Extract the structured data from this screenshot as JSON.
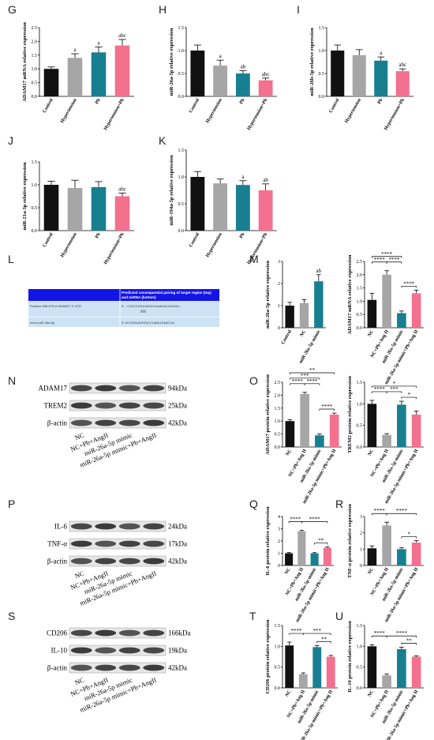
{
  "panel_labels": {
    "G": "G",
    "H": "H",
    "I": "I",
    "J": "J",
    "K": "K",
    "L": "L",
    "M": "M",
    "N": "N",
    "O": "O",
    "P": "P",
    "Q": "Q",
    "R": "R",
    "S": "S",
    "T": "T",
    "U": "U"
  },
  "colors": {
    "black": "#111111",
    "gray": "#a6a6a6",
    "teal": "#187f91",
    "pink": "#f4708f",
    "blue_band": "#1414e6",
    "light_blue": "#cde3f5"
  },
  "target_table": {
    "header": "Predicted consequential pairing of target region (top) and miRNA (bottom)",
    "row1_label": "Position 968-975 of ADAM17 3' UTR",
    "row1_seq": "5'   ...CGUCUGUUACACUAAUACUUGAA...",
    "pairing": "|||||||",
    "row2_label": "mmu-miR-26a-5p",
    "row2_seq": "3'   UCGGAUAGGACCUAAUGAACUU"
  },
  "western_blots": [
    {
      "panel": "N",
      "bands": [
        {
          "name": "ADAM17",
          "kda": "94kDa"
        },
        {
          "name": "TREM2",
          "kda": "25kDa"
        },
        {
          "name": "β-actin",
          "kda": "42kDa"
        }
      ]
    },
    {
      "panel": "P",
      "bands": [
        {
          "name": "IL-6",
          "kda": "24kDa"
        },
        {
          "name": "TNF-α",
          "kda": "17kDa"
        },
        {
          "name": "β-actin",
          "kda": "42kDa"
        }
      ]
    },
    {
      "panel": "S",
      "bands": [
        {
          "name": "CD206",
          "kda": "166kDa"
        },
        {
          "name": "IL-10",
          "kda": "19kDa"
        },
        {
          "name": "β-actin",
          "kda": "42kDa"
        }
      ]
    }
  ],
  "wb_lanes": [
    "NC",
    "NC+Pb+AngII",
    "miR-26a-5p mimic",
    "miR-26a-5p mimic+Pb+AngII"
  ],
  "chart_data": [
    {
      "panel": "G",
      "type": "bar",
      "ylabel": "ADAM17 mRNA relative expression",
      "categories": [
        "Control",
        "Hypertension",
        "Pb",
        "Hypertension+Pb"
      ],
      "values": [
        1.0,
        1.4,
        1.6,
        1.85
      ],
      "errors": [
        0.07,
        0.15,
        0.2,
        0.22
      ],
      "ylim": [
        0,
        2.5
      ],
      "yticks": [
        "0.0",
        "0.5",
        "1.0",
        "1.5",
        "2.0",
        "2.5"
      ],
      "annotations": [
        "",
        "a",
        "a",
        "abc"
      ],
      "colors": [
        "black",
        "gray",
        "teal",
        "pink"
      ],
      "brackets": []
    },
    {
      "panel": "H",
      "type": "bar",
      "ylabel": "miR-26a-5p relative expression",
      "categories": [
        "Control",
        "Hypertension",
        "Pb",
        "Hypertension+Pb"
      ],
      "values": [
        1.0,
        0.67,
        0.5,
        0.35
      ],
      "errors": [
        0.12,
        0.12,
        0.06,
        0.05
      ],
      "ylim": [
        0,
        1.5
      ],
      "yticks": [
        "0.0",
        "0.5",
        "1.0",
        "1.5"
      ],
      "annotations": [
        "",
        "a",
        "ab",
        "abc"
      ],
      "colors": [
        "black",
        "gray",
        "teal",
        "pink"
      ],
      "brackets": []
    },
    {
      "panel": "I",
      "type": "bar",
      "ylabel": "miR-26b-5p relative expression",
      "categories": [
        "Control",
        "Hypertension",
        "Pb",
        "Hypertension+Pb"
      ],
      "values": [
        1.0,
        0.9,
        0.78,
        0.55
      ],
      "errors": [
        0.12,
        0.12,
        0.08,
        0.05
      ],
      "ylim": [
        0,
        1.5
      ],
      "yticks": [
        "0.0",
        "0.5",
        "1.0",
        "1.5"
      ],
      "annotations": [
        "",
        "",
        "a",
        "abc"
      ],
      "colors": [
        "black",
        "gray",
        "teal",
        "pink"
      ],
      "brackets": []
    },
    {
      "panel": "J",
      "type": "bar",
      "ylabel": "miR-21a-3p relative expression",
      "categories": [
        "Control",
        "Hypertension",
        "Pb",
        "Hypertension+Pb"
      ],
      "values": [
        1.0,
        0.93,
        0.95,
        0.75
      ],
      "errors": [
        0.08,
        0.17,
        0.12,
        0.07
      ],
      "ylim": [
        0,
        1.5
      ],
      "yticks": [
        "0.0",
        "0.5",
        "1.0",
        "1.5"
      ],
      "annotations": [
        "",
        "",
        "",
        "abc"
      ],
      "colors": [
        "black",
        "gray",
        "teal",
        "pink"
      ],
      "brackets": []
    },
    {
      "panel": "K",
      "type": "bar",
      "ylabel": "miR-194a-5p relative expression",
      "categories": [
        "Control",
        "Hypertension",
        "Pb",
        "Hypertension+Pb"
      ],
      "values": [
        1.0,
        0.88,
        0.85,
        0.75
      ],
      "errors": [
        0.1,
        0.08,
        0.08,
        0.12
      ],
      "ylim": [
        0,
        1.5
      ],
      "yticks": [
        "0.0",
        "0.5",
        "1.0",
        "1.5"
      ],
      "annotations": [
        "",
        "",
        "a",
        "ab"
      ],
      "colors": [
        "black",
        "gray",
        "teal",
        "pink"
      ],
      "brackets": []
    },
    {
      "panel": "M1",
      "type": "bar",
      "ylabel": "miR-26a-5p relative expression",
      "categories": [
        "Control",
        "NC",
        "miR-26a-5p mimic"
      ],
      "values": [
        1.0,
        1.12,
        2.1
      ],
      "errors": [
        0.15,
        0.15,
        0.3
      ],
      "ylim": [
        0,
        3
      ],
      "yticks": [
        "0",
        "1",
        "2",
        "3"
      ],
      "annotations": [
        "",
        "",
        "ab"
      ],
      "colors": [
        "black",
        "gray",
        "teal"
      ],
      "brackets": []
    },
    {
      "panel": "M2",
      "type": "bar",
      "ylabel": "ADAM17 mRNA relative expression",
      "categories": [
        "NC",
        "NC+Pb+Ang II",
        "miR-26a-5p mimic",
        "miR-26a-5p mimic+Pb+Ang II"
      ],
      "values": [
        1.05,
        2.0,
        0.55,
        1.3
      ],
      "errors": [
        0.25,
        0.15,
        0.08,
        0.12
      ],
      "ylim": [
        0,
        2.5
      ],
      "yticks": [
        "0.0",
        "0.5",
        "1.0",
        "1.5",
        "2.0",
        "2.5"
      ],
      "annotations": [],
      "colors": [
        "black",
        "gray",
        "teal",
        "pink"
      ],
      "brackets": [
        {
          "from": 0,
          "to": 2,
          "level": 2,
          "label": "****"
        },
        {
          "from": 0,
          "to": 1,
          "level": 1,
          "label": "****"
        },
        {
          "from": 1,
          "to": 2,
          "level": 1,
          "label": "****"
        },
        {
          "from": 2,
          "to": 3,
          "level": 0,
          "label": "****"
        }
      ]
    },
    {
      "panel": "O1",
      "type": "bar",
      "ylabel": "ADAM17 protein relative expression",
      "categories": [
        "NC",
        "NC+Pb+Ang II",
        "miR-26a-5p mimic",
        "miR-26a-5p mimic+Pb+Ang II"
      ],
      "values": [
        1.0,
        2.05,
        0.45,
        1.25
      ],
      "errors": [
        0.06,
        0.06,
        0.05,
        0.06
      ],
      "ylim": [
        0,
        2.5
      ],
      "yticks": [
        "0.0",
        "0.5",
        "1.0",
        "1.5",
        "2.0",
        "2.5"
      ],
      "annotations": [],
      "colors": [
        "black",
        "gray",
        "teal",
        "pink"
      ],
      "brackets": [
        {
          "from": 0,
          "to": 3,
          "level": 3,
          "label": "**"
        },
        {
          "from": 0,
          "to": 2,
          "level": 2,
          "label": "***"
        },
        {
          "from": 0,
          "to": 1,
          "level": 1,
          "label": "****"
        },
        {
          "from": 1,
          "to": 2,
          "level": 1,
          "label": "****"
        },
        {
          "from": 2,
          "to": 3,
          "level": 0,
          "label": "****"
        }
      ]
    },
    {
      "panel": "O2",
      "type": "bar",
      "ylabel": "TREM2 protein relative expression",
      "categories": [
        "NC",
        "NC+Pb+Ang II",
        "miR-26a-5p mimic",
        "miR-26a-5p mimic+Pb+Ang II"
      ],
      "values": [
        1.0,
        0.28,
        0.98,
        0.75
      ],
      "errors": [
        0.08,
        0.03,
        0.08,
        0.08
      ],
      "ylim": [
        0,
        1.5
      ],
      "yticks": [
        "0.0",
        "0.5",
        "1.0",
        "1.5"
      ],
      "annotations": [],
      "colors": [
        "black",
        "gray",
        "teal",
        "pink"
      ],
      "brackets": [
        {
          "from": 0,
          "to": 3,
          "level": 2,
          "label": "*"
        },
        {
          "from": 0,
          "to": 1,
          "level": 1,
          "label": "****"
        },
        {
          "from": 1,
          "to": 2,
          "level": 1,
          "label": "***"
        },
        {
          "from": 2,
          "to": 3,
          "level": 0,
          "label": "*"
        }
      ]
    },
    {
      "panel": "Q",
      "type": "bar",
      "ylabel": "IL-6 protein relative expression",
      "categories": [
        "NC",
        "NC+Pb+Ang II",
        "miR-26a-5p mimic",
        "miR-26a-5p mimic+Pb+Ang II"
      ],
      "values": [
        1.0,
        2.8,
        1.0,
        1.45
      ],
      "errors": [
        0.06,
        0.08,
        0.05,
        0.07
      ],
      "ylim": [
        0,
        4
      ],
      "yticks": [
        "0",
        "1",
        "2",
        "3",
        "4"
      ],
      "annotations": [],
      "colors": [
        "black",
        "gray",
        "teal",
        "pink"
      ],
      "brackets": [
        {
          "from": 0,
          "to": 1,
          "level": 1,
          "label": "****"
        },
        {
          "from": 1,
          "to": 3,
          "level": 1,
          "label": "****"
        },
        {
          "from": 2,
          "to": 3,
          "level": 0,
          "label": "**"
        }
      ]
    },
    {
      "panel": "R",
      "type": "bar",
      "ylabel": "TNF-α protein relative expression",
      "categories": [
        "NC",
        "NC+Pb+Ang II",
        "miR-26a-5p mimic",
        "miR-26a-5p mimic+Pb+Ang II"
      ],
      "values": [
        1.05,
        2.45,
        1.0,
        1.4
      ],
      "errors": [
        0.15,
        0.2,
        0.08,
        0.12
      ],
      "ylim": [
        0,
        3
      ],
      "yticks": [
        "0",
        "1",
        "2",
        "3"
      ],
      "annotations": [],
      "colors": [
        "black",
        "gray",
        "teal",
        "pink"
      ],
      "brackets": [
        {
          "from": 0,
          "to": 1,
          "level": 1,
          "label": "****"
        },
        {
          "from": 1,
          "to": 3,
          "level": 1,
          "label": "****"
        },
        {
          "from": 2,
          "to": 3,
          "level": 0,
          "label": "*"
        }
      ]
    },
    {
      "panel": "T",
      "type": "bar",
      "ylabel": "CD206 protein relative expression",
      "categories": [
        "NC",
        "NC+Pb+Ang II",
        "miR-26a-5p mimic",
        "miR-26a-5p mimic+Pb+Ang II"
      ],
      "values": [
        1.02,
        0.33,
        0.98,
        0.75
      ],
      "errors": [
        0.08,
        0.03,
        0.04,
        0.03
      ],
      "ylim": [
        0,
        1.5
      ],
      "yticks": [
        "0.0",
        "0.5",
        "1.0",
        "1.5"
      ],
      "annotations": [],
      "colors": [
        "black",
        "gray",
        "teal",
        "pink"
      ],
      "brackets": [
        {
          "from": 0,
          "to": 1,
          "level": 1,
          "label": "****"
        },
        {
          "from": 1,
          "to": 3,
          "level": 1,
          "label": "***"
        },
        {
          "from": 2,
          "to": 3,
          "level": 0,
          "label": "**"
        }
      ]
    },
    {
      "panel": "U",
      "type": "bar",
      "ylabel": "IL-10 protein relative expression",
      "categories": [
        "NC",
        "NC+Pb+Ang II",
        "miR-26a-5p mimic",
        "miR-26a-5p mimic+Pb+Ang II"
      ],
      "values": [
        1.0,
        0.3,
        0.93,
        0.75
      ],
      "errors": [
        0.04,
        0.03,
        0.05,
        0.02
      ],
      "ylim": [
        0,
        1.5
      ],
      "yticks": [
        "0.0",
        "0.5",
        "1.0",
        "1.5"
      ],
      "annotations": [],
      "colors": [
        "black",
        "gray",
        "teal",
        "pink"
      ],
      "brackets": [
        {
          "from": 0,
          "to": 1,
          "level": 1,
          "label": "****"
        },
        {
          "from": 1,
          "to": 3,
          "level": 1,
          "label": "****"
        },
        {
          "from": 2,
          "to": 3,
          "level": 0,
          "label": "**"
        }
      ]
    }
  ]
}
